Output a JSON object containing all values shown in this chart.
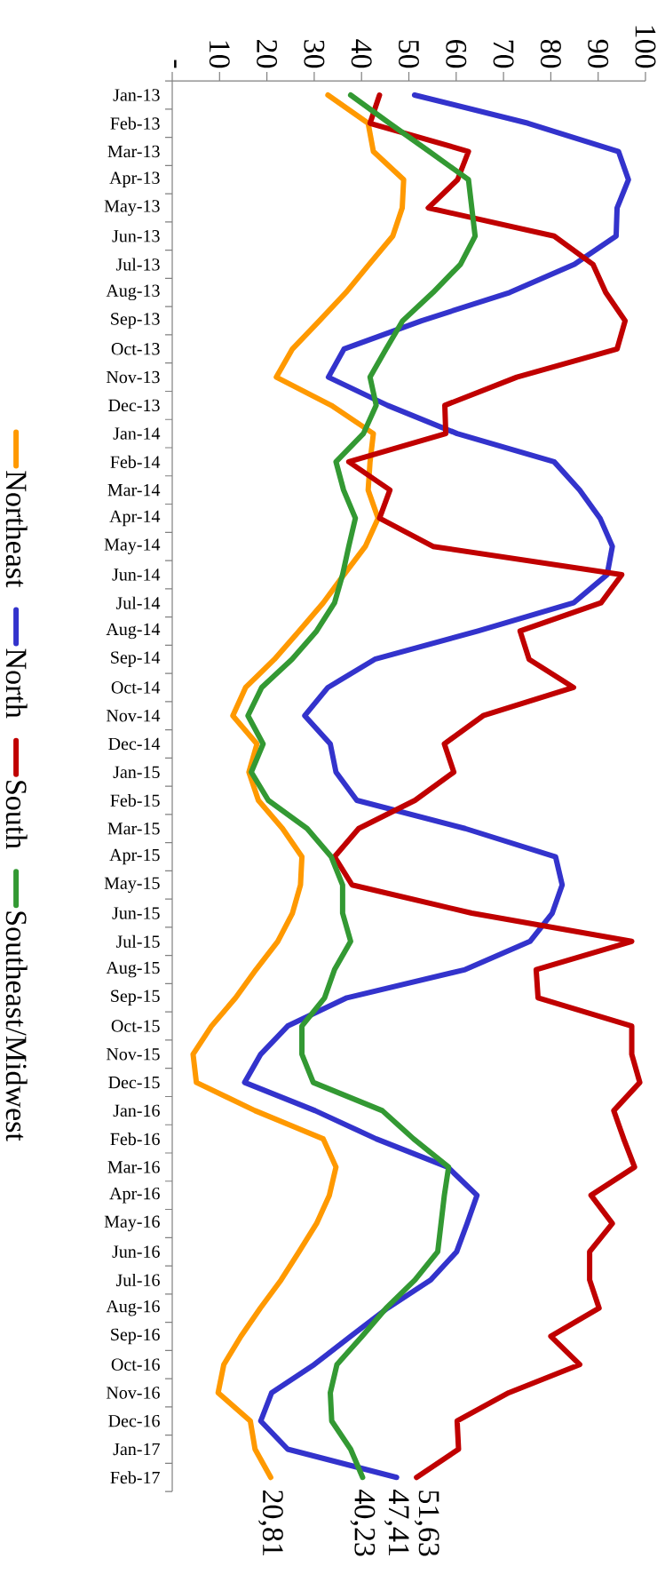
{
  "chart_data": {
    "type": "line",
    "categories": [
      "Jan-13",
      "Feb-13",
      "Mar-13",
      "Apr-13",
      "May-13",
      "Jun-13",
      "Jul-13",
      "Aug-13",
      "Sep-13",
      "Oct-13",
      "Nov-13",
      "Dec-13",
      "Jan-14",
      "Feb-14",
      "Mar-14",
      "Apr-14",
      "May-14",
      "Jun-14",
      "Jul-14",
      "Aug-14",
      "Sep-14",
      "Oct-14",
      "Nov-14",
      "Dec-14",
      "Jan-15",
      "Feb-15",
      "Mar-15",
      "Apr-15",
      "May-15",
      "Jun-15",
      "Jul-15",
      "Aug-15",
      "Sep-15",
      "Oct-15",
      "Nov-15",
      "Dec-15",
      "Jan-16",
      "Feb-16",
      "Mar-16",
      "Apr-16",
      "May-16",
      "Jun-16",
      "Jul-16",
      "Aug-16",
      "Sep-16",
      "Oct-16",
      "Nov-16",
      "Dec-16",
      "Jan-17",
      "Feb-17"
    ],
    "series": [
      {
        "name": "Northeast",
        "color": "#ff9900",
        "values": [
          32.9,
          41.4,
          42.5,
          48.9,
          48.6,
          46.6,
          41.6,
          36.7,
          31.1,
          25.4,
          22.0,
          33.6,
          42.5,
          41.8,
          41.4,
          43.5,
          40.8,
          36.3,
          31.9,
          26.8,
          21.6,
          15.5,
          12.8,
          17.9,
          16.2,
          18.2,
          23.3,
          27.4,
          27.1,
          25.4,
          22.3,
          17.7,
          13.4,
          8.3,
          4.4,
          5.1,
          17.5,
          31.9,
          34.6,
          33.2,
          30.5,
          26.8,
          23.0,
          18.6,
          14.5,
          10.9,
          9.7,
          16.5,
          17.5,
          20.81
        ],
        "value_labels": [
          null,
          null,
          null,
          null,
          null,
          null,
          null,
          null,
          null,
          null,
          null,
          null,
          null,
          null,
          null,
          null,
          null,
          null,
          null,
          null,
          null,
          null,
          null,
          null,
          null,
          null,
          null,
          null,
          null,
          null,
          null,
          null,
          null,
          null,
          null,
          null,
          null,
          null,
          null,
          null,
          null,
          null,
          null,
          null,
          null,
          null,
          null,
          null,
          null,
          "20,81"
        ]
      },
      {
        "name": "North",
        "color": "#3333cc",
        "values": [
          51.2,
          75.2,
          94.3,
          96.4,
          94.0,
          93.8,
          85.0,
          71.3,
          52.7,
          36.3,
          33.0,
          45.5,
          60.2,
          80.7,
          86.1,
          90.4,
          93.0,
          91.9,
          84.8,
          64.6,
          42.8,
          32.9,
          28.0,
          33.4,
          34.6,
          39.0,
          61.9,
          81.0,
          82.4,
          80.3,
          75.6,
          61.9,
          36.9,
          24.4,
          18.7,
          15.3,
          30.2,
          43.1,
          58.2,
          64.4,
          62.3,
          60.1,
          54.6,
          45.5,
          37.7,
          30.0,
          21.0,
          18.7,
          24.4,
          47.41
        ],
        "value_labels": [
          null,
          null,
          null,
          null,
          null,
          null,
          null,
          null,
          null,
          null,
          null,
          null,
          null,
          null,
          null,
          null,
          null,
          null,
          null,
          null,
          null,
          null,
          null,
          null,
          null,
          null,
          null,
          null,
          null,
          null,
          null,
          null,
          null,
          null,
          null,
          null,
          null,
          null,
          null,
          null,
          null,
          null,
          null,
          null,
          null,
          null,
          null,
          null,
          null,
          "47,41"
        ]
      },
      {
        "name": "South",
        "color": "#c00000",
        "values": [
          43.8,
          41.8,
          62.6,
          60.3,
          54.1,
          80.7,
          88.9,
          91.6,
          95.7,
          94.0,
          72.8,
          57.6,
          57.8,
          37.3,
          46.0,
          43.8,
          55.1,
          95.0,
          90.6,
          73.5,
          75.4,
          84.8,
          65.7,
          57.5,
          59.5,
          51.3,
          39.4,
          34.3,
          38.0,
          63.3,
          97.1,
          76.9,
          77.3,
          97.1,
          97.1,
          98.8,
          93.3,
          95.4,
          97.7,
          88.5,
          93.0,
          88.2,
          88.2,
          90.2,
          80.0,
          86.1,
          71.1,
          60.2,
          60.5,
          51.63
        ],
        "value_labels": [
          null,
          null,
          null,
          null,
          null,
          null,
          null,
          null,
          null,
          null,
          null,
          null,
          null,
          null,
          null,
          null,
          null,
          null,
          null,
          null,
          null,
          null,
          null,
          null,
          null,
          null,
          null,
          null,
          null,
          null,
          null,
          null,
          null,
          null,
          null,
          null,
          null,
          null,
          null,
          null,
          null,
          null,
          null,
          null,
          null,
          null,
          null,
          null,
          null,
          "51,63"
        ]
      },
      {
        "name": "Southeast/Midwest",
        "color": "#339933",
        "values": [
          37.7,
          45.9,
          54.3,
          62.6,
          63.3,
          64.0,
          60.9,
          55.1,
          48.7,
          45.2,
          41.8,
          43.1,
          40.4,
          34.6,
          36.2,
          38.7,
          37.3,
          36.0,
          34.3,
          30.5,
          25.3,
          18.9,
          16.0,
          19.2,
          16.7,
          20.3,
          28.5,
          33.6,
          36.0,
          36.0,
          37.7,
          34.3,
          32.2,
          27.4,
          27.4,
          29.8,
          44.4,
          51.0,
          58.4,
          57.5,
          56.8,
          56.1,
          51.3,
          45.2,
          40.1,
          34.8,
          33.4,
          33.7,
          37.7,
          40.23
        ],
        "value_labels": [
          null,
          null,
          null,
          null,
          null,
          null,
          null,
          null,
          null,
          null,
          null,
          null,
          null,
          null,
          null,
          null,
          null,
          null,
          null,
          null,
          null,
          null,
          null,
          null,
          null,
          null,
          null,
          null,
          null,
          null,
          null,
          null,
          null,
          null,
          null,
          null,
          null,
          null,
          null,
          null,
          null,
          null,
          null,
          null,
          null,
          null,
          null,
          null,
          null,
          "40,23"
        ]
      }
    ],
    "orientation": "horizontal",
    "xlim": [
      0,
      100
    ],
    "xticks": [
      {
        "value": 0,
        "label": "-"
      },
      10,
      20,
      30,
      40,
      50,
      60,
      70,
      80,
      90,
      100
    ],
    "legend": "bottom"
  }
}
